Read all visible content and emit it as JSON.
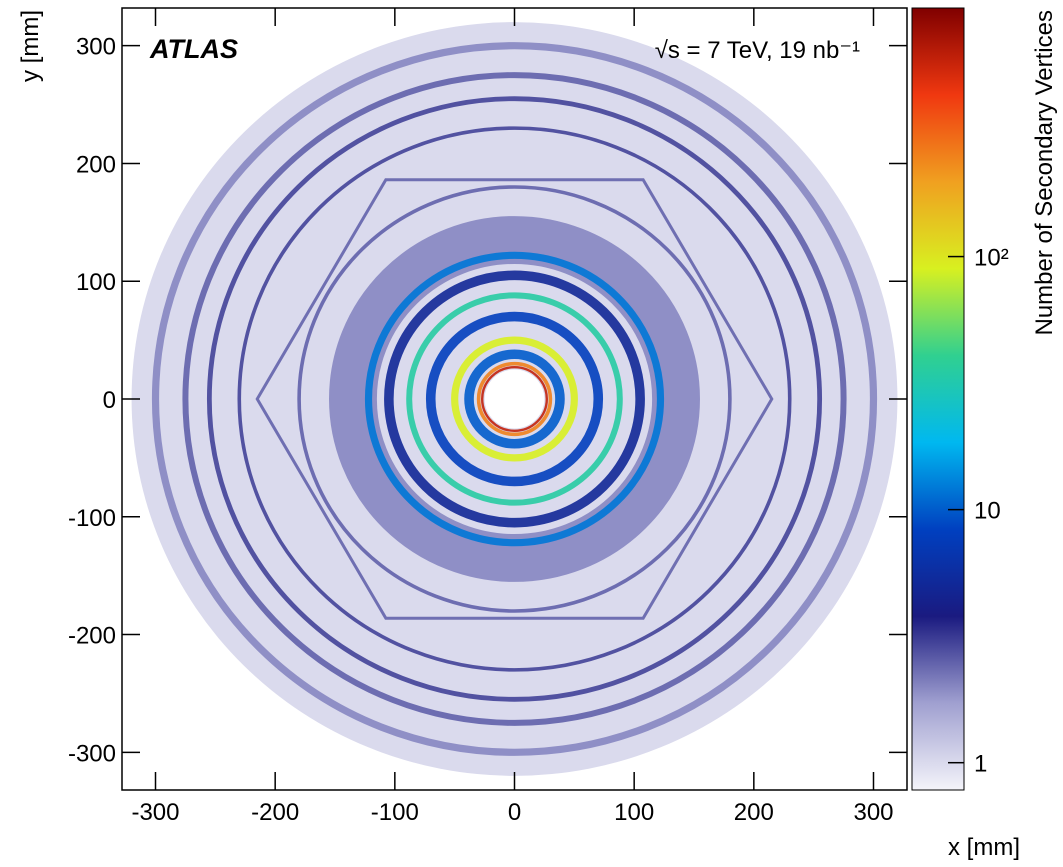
{
  "chart_data": {
    "type": "heatmap",
    "xlabel": "x [mm]",
    "ylabel": "y [mm]",
    "colorbar_label": "Number of Secondary Vertices",
    "annotations": [
      "ATLAS",
      "√s = 7 TeV, 19 nb⁻¹"
    ],
    "xlim": [
      -328,
      328
    ],
    "ylim": [
      -332,
      332
    ],
    "xticks": [
      -300,
      -200,
      -100,
      0,
      100,
      200,
      300
    ],
    "yticks": [
      -300,
      -200,
      -100,
      0,
      100,
      200,
      300
    ],
    "zlim": [
      0.78,
      960
    ],
    "zscale": "log",
    "zticks": [
      1,
      10,
      {
        "value": 100,
        "label": "10²"
      }
    ],
    "colormap": [
      "#f4f4fa",
      "#a0a0d0",
      "#1a1a80",
      "#0040c0",
      "#00b8f0",
      "#30d090",
      "#d8f020",
      "#f0a020",
      "#f03810",
      "#800000"
    ],
    "background": {
      "radius": 320,
      "count": 1
    },
    "hole_radius": 25,
    "rings": [
      {
        "radius": 135,
        "width": 40,
        "count": 2
      },
      {
        "radius": 300,
        "width": 6,
        "count": 2
      },
      {
        "radius": 275,
        "width": 5,
        "count": 2.5
      },
      {
        "radius": 255,
        "width": 4,
        "count": 3
      },
      {
        "radius": 230,
        "width": 3,
        "count": 3
      },
      {
        "radius": 180,
        "width": 3,
        "count": 2.5
      },
      {
        "radius": 122,
        "width": 6,
        "count": 12
      },
      {
        "radius": 105,
        "width": 8,
        "count": 5
      },
      {
        "radius": 88,
        "width": 5,
        "count": 35
      },
      {
        "radius": 70,
        "width": 8,
        "count": 8
      },
      {
        "radius": 50,
        "width": 6,
        "count": 90
      },
      {
        "radius": 38,
        "width": 8,
        "count": 10
      },
      {
        "radius": 30,
        "width": 3,
        "count": 250
      },
      {
        "radius": 27,
        "width": 2,
        "count": 600
      }
    ],
    "polygons": [
      {
        "radius": 215,
        "sides": 6,
        "count": 3
      }
    ]
  }
}
